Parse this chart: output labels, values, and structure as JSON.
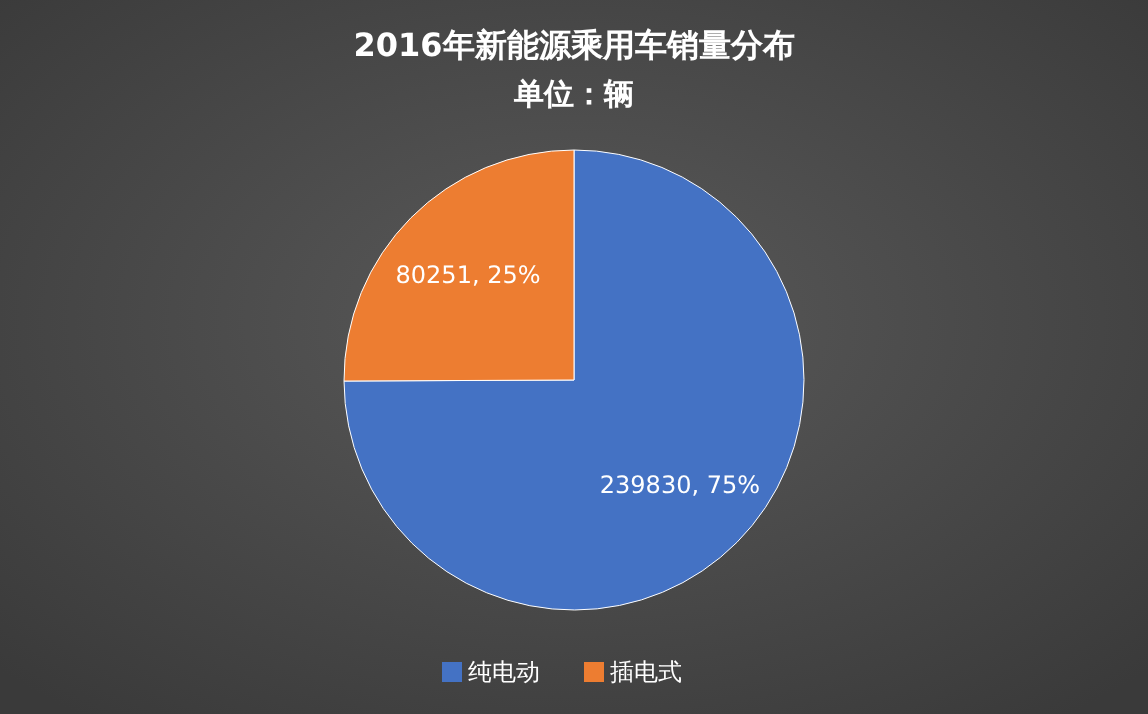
{
  "chart_data": {
    "type": "pie",
    "title": "2016年新能源乘用车销量分布",
    "subtitle": "单位：辆",
    "categories": [
      "纯电动",
      "插电式"
    ],
    "values": [
      239830,
      80251
    ],
    "colors": [
      "#4472c4",
      "#ed7d31"
    ],
    "value_labels": [
      "239830, 75%",
      "80251, 25%"
    ],
    "legend": "bottom"
  }
}
